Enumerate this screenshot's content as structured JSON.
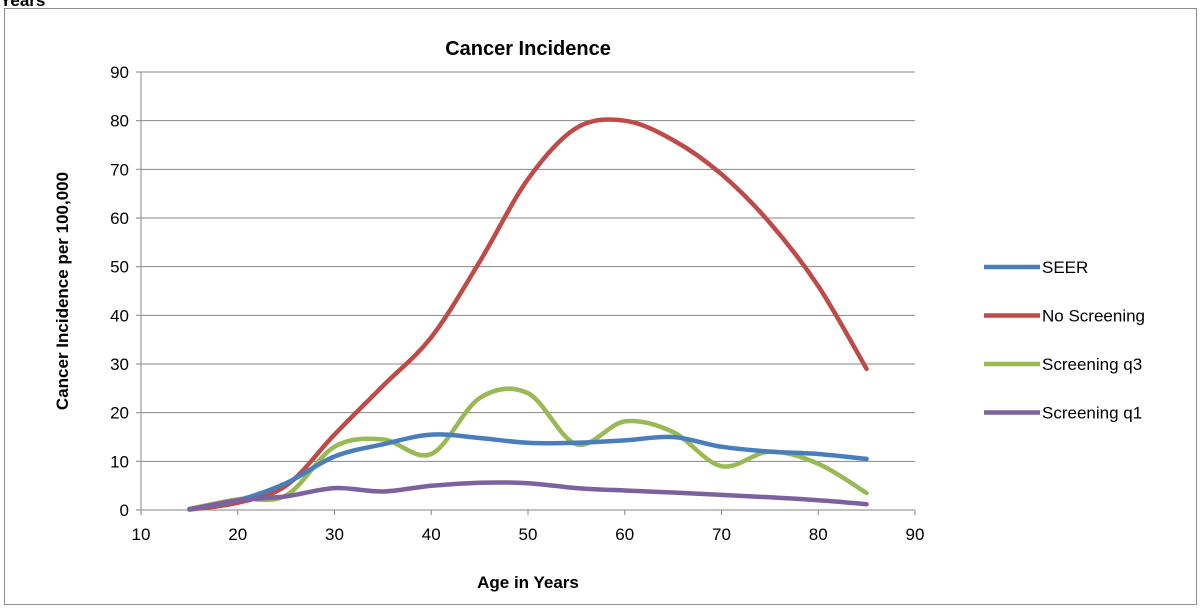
{
  "page": {
    "top_label": "Years"
  },
  "chart_data": {
    "type": "line",
    "title": "Cancer Incidence",
    "xlabel": "Age in Years",
    "ylabel": "Cancer Incidence per 100,000",
    "xlim": [
      10,
      90
    ],
    "ylim": [
      0,
      90
    ],
    "xticks": [
      10,
      20,
      30,
      40,
      50,
      60,
      70,
      80,
      90
    ],
    "yticks": [
      0,
      10,
      20,
      30,
      40,
      50,
      60,
      70,
      80,
      90
    ],
    "grid": "horizontal",
    "legend_position": "right",
    "series": [
      {
        "name": "SEER",
        "color": "#4a7ebb",
        "x": [
          15,
          20,
          25,
          30,
          35,
          40,
          45,
          50,
          55,
          60,
          65,
          70,
          75,
          80,
          85
        ],
        "y": [
          0.2,
          2.0,
          5.5,
          11.0,
          13.5,
          15.5,
          14.8,
          13.8,
          13.8,
          14.3,
          15.0,
          13.0,
          12.0,
          11.5,
          10.5
        ]
      },
      {
        "name": "No Screening",
        "color": "#be4b48",
        "x": [
          15,
          20,
          25,
          30,
          35,
          40,
          45,
          50,
          55,
          60,
          65,
          70,
          75,
          80,
          85
        ],
        "y": [
          0.1,
          1.5,
          5.0,
          15.5,
          25.5,
          35.5,
          51.0,
          68.0,
          78.5,
          80.0,
          76.0,
          69.0,
          59.0,
          46.0,
          29.0
        ]
      },
      {
        "name": "Screening q3",
        "color": "#98b954",
        "x": [
          15,
          20,
          25,
          30,
          35,
          40,
          45,
          50,
          55,
          60,
          65,
          70,
          75,
          80,
          85
        ],
        "y": [
          0.2,
          2.2,
          3.0,
          13.0,
          14.5,
          11.5,
          23.0,
          24.0,
          13.5,
          18.2,
          16.0,
          9.0,
          12.0,
          9.5,
          3.5
        ]
      },
      {
        "name": "Screening q1",
        "color": "#7d60a0",
        "x": [
          15,
          20,
          25,
          30,
          35,
          40,
          45,
          50,
          55,
          60,
          65,
          70,
          75,
          80,
          85
        ],
        "y": [
          0.1,
          2.0,
          2.8,
          4.5,
          3.8,
          5.0,
          5.6,
          5.5,
          4.5,
          4.0,
          3.6,
          3.1,
          2.6,
          2.0,
          1.2
        ]
      }
    ]
  }
}
